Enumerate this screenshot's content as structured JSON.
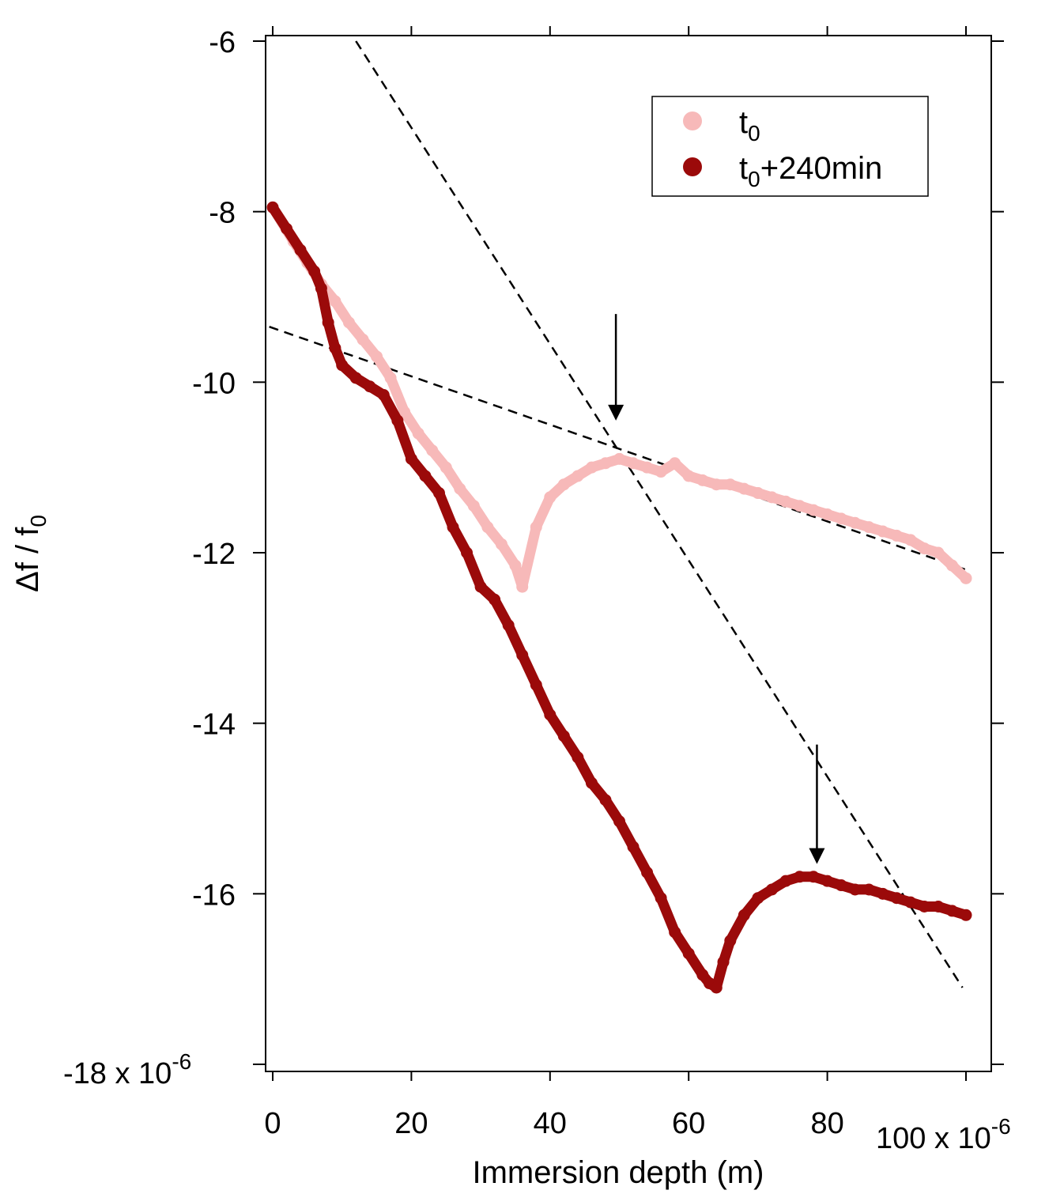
{
  "chart_data": {
    "type": "line",
    "xlabel": "Immersion depth (m)",
    "ylabel": "Δf / f",
    "ylabel_subscript": "0",
    "x_multiplier": "100 x 10",
    "x_multiplier_exp": "-6",
    "y_multiplier": "-18 x 10",
    "y_multiplier_exp": "-6",
    "xlim": [
      0,
      100
    ],
    "ylim": [
      -18,
      -6
    ],
    "x_ticks": [
      "0",
      "20",
      "40",
      "60",
      "80"
    ],
    "x_tick_values": [
      0,
      20,
      40,
      60,
      80
    ],
    "y_ticks": [
      "-6",
      "-8",
      "-10",
      "-12",
      "-14",
      "-16"
    ],
    "y_tick_values": [
      -6,
      -8,
      -10,
      -12,
      -14,
      -16
    ],
    "legend_position": "top-right",
    "grid": false,
    "series": [
      {
        "name": "t",
        "name_subscript": "0",
        "name_suffix": "",
        "color": "#f7b9b9",
        "x": [
          0,
          3,
          5,
          7,
          9,
          11,
          13,
          15,
          17,
          19,
          21,
          23,
          25,
          27,
          29,
          31,
          33,
          35,
          36,
          38,
          40,
          42,
          44,
          46,
          48,
          50,
          52,
          54,
          56,
          58,
          60,
          62,
          64,
          66,
          68,
          70,
          72,
          74,
          76,
          78,
          80,
          82,
          84,
          86,
          88,
          90,
          92,
          94,
          96,
          98,
          100
        ],
        "y": [
          -7.95,
          -8.35,
          -8.6,
          -8.85,
          -9.05,
          -9.3,
          -9.5,
          -9.7,
          -9.95,
          -10.35,
          -10.6,
          -10.8,
          -11.0,
          -11.25,
          -11.45,
          -11.7,
          -11.9,
          -12.15,
          -12.4,
          -11.7,
          -11.35,
          -11.2,
          -11.1,
          -11.0,
          -10.95,
          -10.9,
          -10.95,
          -11.0,
          -11.05,
          -10.95,
          -11.1,
          -11.15,
          -11.2,
          -11.2,
          -11.25,
          -11.3,
          -11.35,
          -11.4,
          -11.45,
          -11.5,
          -11.55,
          -11.6,
          -11.65,
          -11.7,
          -11.75,
          -11.8,
          -11.85,
          -11.95,
          -12.0,
          -12.15,
          -12.3
        ]
      },
      {
        "name": "t",
        "name_subscript": "0",
        "name_suffix": "+240min",
        "color": "#9b0a0a",
        "x": [
          0,
          2,
          4,
          6,
          7,
          8,
          9,
          10,
          12,
          14,
          16,
          18,
          20,
          22,
          24,
          26,
          28,
          30,
          32,
          34,
          36,
          38,
          40,
          42,
          44,
          46,
          48,
          50,
          52,
          54,
          56,
          58,
          60,
          62,
          63,
          64,
          65,
          66,
          68,
          70,
          72,
          74,
          76,
          78,
          80,
          82,
          84,
          86,
          88,
          90,
          92,
          94,
          96,
          98,
          100
        ],
        "y": [
          -7.95,
          -8.2,
          -8.45,
          -8.7,
          -8.9,
          -9.3,
          -9.6,
          -9.8,
          -9.95,
          -10.05,
          -10.15,
          -10.45,
          -10.9,
          -11.1,
          -11.3,
          -11.7,
          -12.0,
          -12.4,
          -12.55,
          -12.85,
          -13.2,
          -13.55,
          -13.9,
          -14.15,
          -14.4,
          -14.7,
          -14.9,
          -15.15,
          -15.45,
          -15.75,
          -16.05,
          -16.45,
          -16.7,
          -16.95,
          -17.05,
          -17.1,
          -16.8,
          -16.55,
          -16.25,
          -16.05,
          -15.95,
          -15.85,
          -15.8,
          -15.8,
          -15.85,
          -15.9,
          -15.95,
          -15.95,
          -16.0,
          -16.05,
          -16.1,
          -16.15,
          -16.15,
          -16.2,
          -16.25
        ]
      }
    ],
    "fit_lines": [
      {
        "x": [
          -0.5,
          100
        ],
        "y": [
          -9.35,
          -12.2
        ]
      },
      {
        "x": [
          12,
          99.5
        ],
        "y": [
          -6.0,
          -17.1
        ]
      }
    ],
    "annotations": [
      {
        "type": "arrow",
        "x": 49.5,
        "y_from": -9.2,
        "y_to": -10.45
      },
      {
        "type": "arrow",
        "x": 78.5,
        "y_from": -14.25,
        "y_to": -15.65
      }
    ]
  }
}
